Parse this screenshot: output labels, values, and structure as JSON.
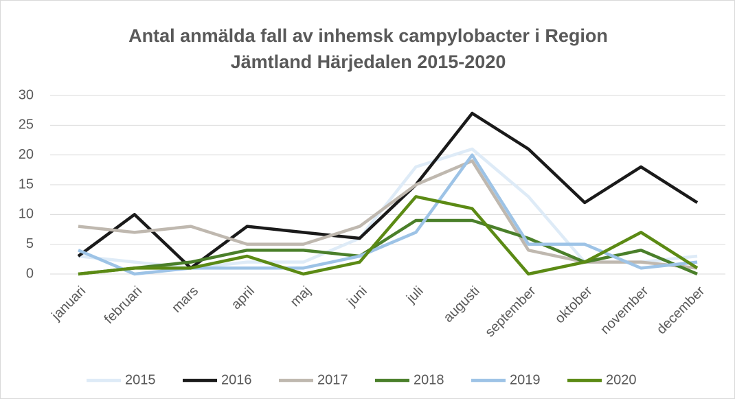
{
  "chart_data": {
    "type": "line",
    "title": "Antal anmälda fall av inhemsk campylobacter i Region Jämtland Härjedalen 2015-2020",
    "categories": [
      "januari",
      "februari",
      "mars",
      "april",
      "maj",
      "juni",
      "juli",
      "augusti",
      "september",
      "oktober",
      "november",
      "december"
    ],
    "series": [
      {
        "name": "2015",
        "color": "#deebf7",
        "values": [
          3,
          2,
          1,
          2,
          2,
          6,
          18,
          21,
          13,
          2,
          2,
          3
        ]
      },
      {
        "name": "2016",
        "color": "#1a1a1a",
        "values": [
          3,
          10,
          1,
          8,
          7,
          6,
          15,
          27,
          21,
          12,
          18,
          12
        ]
      },
      {
        "name": "2017",
        "color": "#bfb8af",
        "values": [
          8,
          7,
          8,
          5,
          5,
          8,
          15,
          19,
          4,
          2,
          2,
          1
        ]
      },
      {
        "name": "2018",
        "color": "#4a7f2a",
        "values": [
          0,
          1,
          2,
          4,
          4,
          3,
          9,
          9,
          6,
          2,
          4,
          0
        ]
      },
      {
        "name": "2019",
        "color": "#9dc3e6",
        "values": [
          4,
          0,
          1,
          1,
          1,
          3,
          7,
          20,
          5,
          5,
          1,
          2
        ]
      },
      {
        "name": "2020",
        "color": "#5b8a14",
        "values": [
          0,
          1,
          1,
          3,
          0,
          2,
          13,
          11,
          0,
          2,
          7,
          1
        ]
      }
    ],
    "ylim": [
      0,
      30
    ],
    "yticks": [
      0,
      5,
      10,
      15,
      20,
      25,
      30
    ],
    "grid": true,
    "legend": "bottom"
  }
}
